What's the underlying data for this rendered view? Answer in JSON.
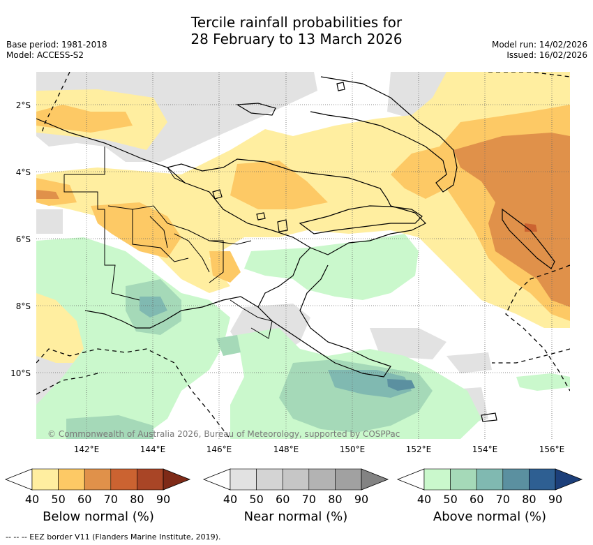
{
  "title": {
    "line1": "Tercile rainfall probabilities for",
    "line2": "28 February to 13 March 2026"
  },
  "meta": {
    "base_period": "Base period: 1981-2018",
    "model": "Model: ACCESS-S2",
    "model_run": "Model run: 14/02/2026",
    "issued": "Issued: 16/02/2026"
  },
  "map": {
    "lat_labels": [
      "2°S",
      "4°S",
      "6°S",
      "8°S",
      "10°S"
    ],
    "lon_labels": [
      "142°E",
      "144°E",
      "146°E",
      "148°E",
      "150°E",
      "152°E",
      "154°E",
      "156°E"
    ],
    "copyright": "© Commonwealth of Australia 2026, Bureau of Meteorology, supported by COSPPac"
  },
  "colorbars": [
    {
      "name": "below",
      "label": "Below normal (%)",
      "ticks": [
        "40",
        "50",
        "60",
        "70",
        "80",
        "90"
      ],
      "colors": [
        "#ffeea0",
        "#fdc965",
        "#e0914a",
        "#cb6331",
        "#a94526",
        "#7e2a17"
      ]
    },
    {
      "name": "near",
      "label": "Near normal (%)",
      "ticks": [
        "40",
        "50",
        "60",
        "70",
        "80",
        "90"
      ],
      "colors": [
        "#e2e2e2",
        "#d4d4d4",
        "#c6c6c6",
        "#b3b3b3",
        "#a1a1a1",
        "#838383"
      ]
    },
    {
      "name": "above",
      "label": "Above normal (%)",
      "ticks": [
        "40",
        "50",
        "60",
        "70",
        "80",
        "90"
      ],
      "colors": [
        "#caf8cc",
        "#a5d9b8",
        "#80b9b1",
        "#5b90a0",
        "#2e5f92",
        "#1c3f7a"
      ]
    }
  ],
  "footer": "-- -- -- EEZ border V11 (Flanders Marine Institute, 2019)."
}
